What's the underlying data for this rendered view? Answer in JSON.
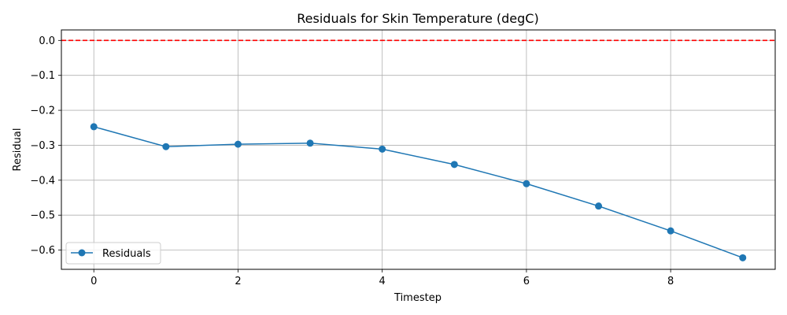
{
  "chart_data": {
    "type": "line",
    "title": "Residuals for Skin Temperature (degC)",
    "xlabel": "Timestep",
    "ylabel": "Residual",
    "xlim": [
      -0.45,
      9.45
    ],
    "ylim": [
      -0.655,
      0.03
    ],
    "xticks": [
      0,
      2,
      4,
      6,
      8
    ],
    "xtick_labels": [
      "0",
      "2",
      "4",
      "6",
      "8"
    ],
    "yticks": [
      0.0,
      -0.1,
      -0.2,
      -0.3,
      -0.4,
      -0.5,
      -0.6
    ],
    "ytick_labels": [
      "0.0",
      "−0.1",
      "−0.2",
      "−0.3",
      "−0.4",
      "−0.5",
      "−0.6"
    ],
    "grid": true,
    "legend_position": "lower-left",
    "reference_line": {
      "y": 0.0,
      "color": "#ff0000",
      "style": "dashed"
    },
    "series": [
      {
        "name": "Residuals",
        "color": "#1f77b4",
        "marker": "circle",
        "x": [
          0,
          1,
          2,
          3,
          4,
          5,
          6,
          7,
          8,
          9
        ],
        "y": [
          -0.247,
          -0.304,
          -0.297,
          -0.294,
          -0.311,
          -0.355,
          -0.41,
          -0.474,
          -0.545,
          -0.622
        ]
      }
    ]
  }
}
